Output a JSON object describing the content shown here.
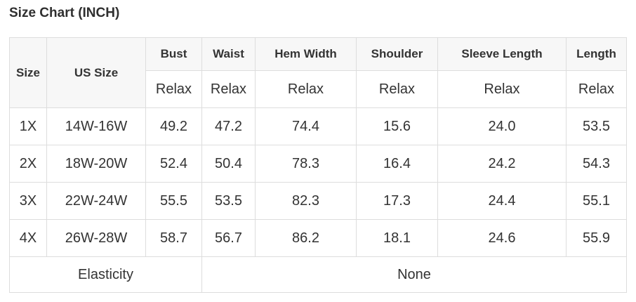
{
  "page": {
    "title": "Size Chart (INCH)"
  },
  "table": {
    "corner": {
      "size": "Size",
      "us_size": "US Size"
    },
    "measure_headers": [
      "Bust",
      "Waist",
      "Hem Width",
      "Shoulder",
      "Sleeve Length",
      "Length"
    ],
    "fit_row": [
      "Relax",
      "Relax",
      "Relax",
      "Relax",
      "Relax",
      "Relax"
    ],
    "rows": [
      {
        "size": "1X",
        "us_size": "14W-16W",
        "values": [
          "49.2",
          "47.2",
          "74.4",
          "15.6",
          "24.0",
          "53.5"
        ]
      },
      {
        "size": "2X",
        "us_size": "18W-20W",
        "values": [
          "52.4",
          "50.4",
          "78.3",
          "16.4",
          "24.2",
          "54.3"
        ]
      },
      {
        "size": "3X",
        "us_size": "22W-24W",
        "values": [
          "55.5",
          "53.5",
          "82.3",
          "17.3",
          "24.4",
          "55.1"
        ]
      },
      {
        "size": "4X",
        "us_size": "26W-28W",
        "values": [
          "58.7",
          "56.7",
          "86.2",
          "18.1",
          "24.6",
          "55.9"
        ]
      }
    ],
    "footer": {
      "label": "Elasticity",
      "value": "None"
    },
    "colors": {
      "dark_header_bg": "#3d3d3d",
      "dark_header_text": "#ffffff",
      "header_bg": "#f7f7f7",
      "border": "#dddddd",
      "text": "#333333"
    }
  }
}
